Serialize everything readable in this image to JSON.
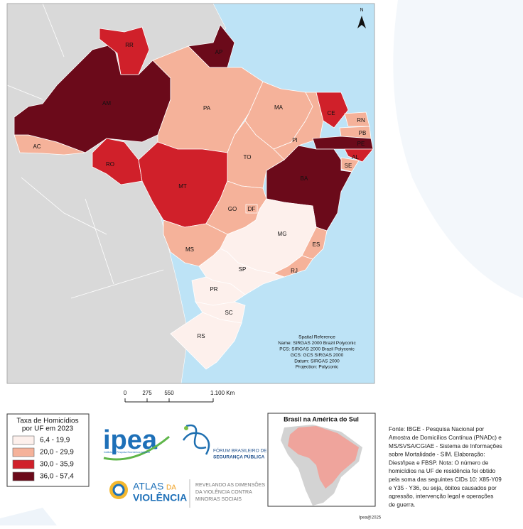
{
  "map": {
    "north": "N",
    "states": [
      {
        "label": "AC",
        "color": "#f5b29a"
      },
      {
        "label": "AM",
        "color": "#6b0a1a"
      },
      {
        "label": "RR",
        "color": "#d0202a"
      },
      {
        "label": "AP",
        "color": "#6b0a1a"
      },
      {
        "label": "PA",
        "color": "#f5b29a"
      },
      {
        "label": "MA",
        "color": "#f5b29a"
      },
      {
        "label": "PI",
        "color": "#f5b29a"
      },
      {
        "label": "CE",
        "color": "#d0202a"
      },
      {
        "label": "RN",
        "color": "#f5b29a"
      },
      {
        "label": "PB",
        "color": "#f5b29a"
      },
      {
        "label": "PE",
        "color": "#6b0a1a"
      },
      {
        "label": "AL",
        "color": "#d0202a"
      },
      {
        "label": "SE",
        "color": "#f5b29a"
      },
      {
        "label": "BA",
        "color": "#6b0a1a"
      },
      {
        "label": "TO",
        "color": "#f5b29a"
      },
      {
        "label": "RO",
        "color": "#d0202a"
      },
      {
        "label": "MT",
        "color": "#d0202a"
      },
      {
        "label": "GO",
        "color": "#f5b29a"
      },
      {
        "label": "DF",
        "color": "#f5b29a"
      },
      {
        "label": "MS",
        "color": "#f5b29a"
      },
      {
        "label": "MG",
        "color": "#fdf0ec"
      },
      {
        "label": "ES",
        "color": "#f5b29a"
      },
      {
        "label": "RJ",
        "color": "#f5b29a"
      },
      {
        "label": "SP",
        "color": "#fdf0ec"
      },
      {
        "label": "PR",
        "color": "#fdf0ec"
      },
      {
        "label": "SC",
        "color": "#fdf0ec"
      },
      {
        "label": "RS",
        "color": "#fdf0ec"
      }
    ],
    "spatial_reference": [
      "Spatial Reference",
      "Name: SIRGAS 2000 Brazil Polyconic",
      "PCS: SIRGAS 2000 Brazil Polyconic",
      "GCS: GCS SIRGAS 2000",
      "Datum: SIRGAS 2000",
      "Projection: Polyconic"
    ],
    "scale_ticks": [
      {
        "value": 0,
        "label": "0"
      },
      {
        "value": 275,
        "label": "275"
      },
      {
        "value": 550,
        "label": "550"
      },
      {
        "value": 1100,
        "label": "1.100 Km"
      }
    ],
    "scale_lim": [
      0,
      1100
    ]
  },
  "legend": {
    "title": [
      "Taxa de Homicídios",
      "por UF em 2023"
    ],
    "items": [
      {
        "label": "6,4 - 19,9",
        "color": "#fdf0ec"
      },
      {
        "label": "20,0 - 29,9",
        "color": "#f5b29a"
      },
      {
        "label": "30,0 - 35,9",
        "color": "#d0202a"
      },
      {
        "label": "36,0 - 57,4",
        "color": "#6b0a1a"
      }
    ]
  },
  "logos": {
    "ipea": "ipea",
    "ipea_sub": "Instituto de Pesquisa Econômica Aplicada",
    "forum": [
      "FÓRUM BRASILEIRO DE",
      "SEGURANÇA PÚBLICA"
    ],
    "atlas": [
      "ATLAS",
      "DA",
      "VIOLÊNCIA"
    ],
    "atlas_tagline": [
      "REVELANDO AS DIMENSÕES",
      "DA VIOLÊNCIA CONTRA",
      "MINORIAS SOCIAIS"
    ]
  },
  "inset": {
    "title": "Brasil na América do Sul"
  },
  "source_note": [
    "Fonte: IBGE - Pesquisa Nacional por",
    "Amostra de Domicílios Contínua (PNADc) e",
    "MS/SVSA/CGIAE - Sistema de Informações",
    "sobre Mortalidade - SIM. Elaboração:",
    "Diest/Ipea e FBSP. Nota: O número de",
    "homicídios na UF de residência foi obtido",
    "pela soma das seguintes CIDs 10: X85-Y09",
    "e Y35 - Y36, ou seja, óbitos causados por",
    "agressão, intervenção legal e operações",
    "de guerra."
  ],
  "credit": "Ipea@2025"
}
